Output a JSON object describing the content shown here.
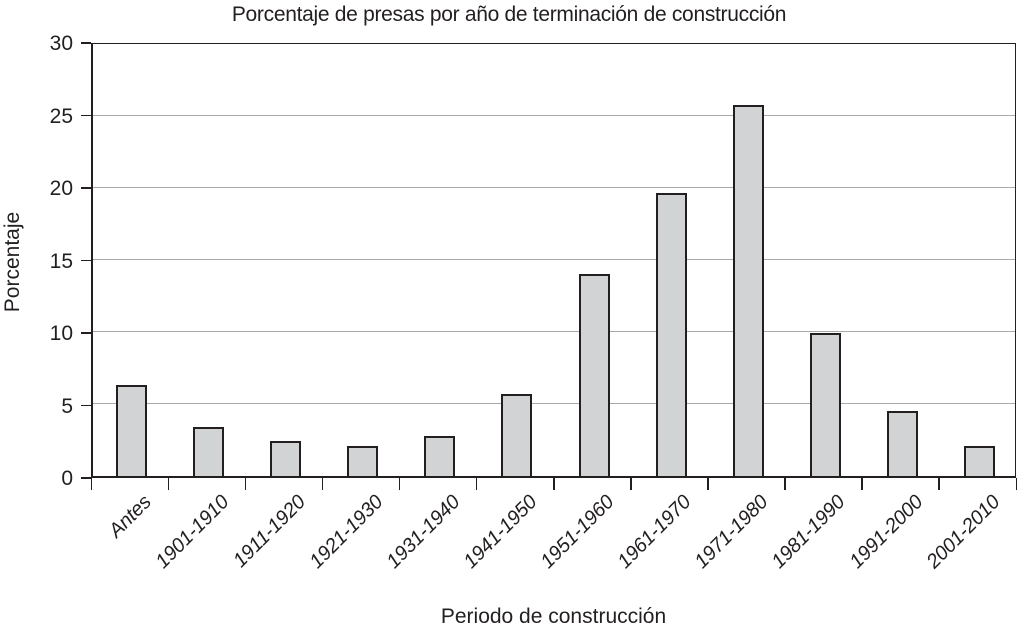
{
  "chart_data": {
    "type": "bar",
    "title": "Porcentaje de presas por año de terminación de construcción",
    "xlabel": "Periodo de construcción",
    "ylabel": "Porcentaje",
    "categories": [
      "Antes",
      "1901-1910",
      "1911-1920",
      "1921-1930",
      "1931-1940",
      "1941-1950",
      "1951-1960",
      "1961-1970",
      "1971-1980",
      "1981-1990",
      "1991-2000",
      "2001-2010"
    ],
    "values": [
      6.3,
      3.4,
      2.4,
      2.1,
      2.8,
      5.7,
      14.0,
      19.6,
      25.7,
      9.9,
      4.5,
      2.1
    ],
    "ylim": [
      0,
      30
    ],
    "yticks": [
      0,
      5,
      10,
      15,
      20,
      25,
      30
    ],
    "grid": true,
    "legend": false,
    "bar_fill_color": "#d1d3d4",
    "bar_border_color": "#231f20",
    "gridline_color": "#a7a9ac",
    "axis_color": "#231f20",
    "text_color": "#231f20"
  }
}
